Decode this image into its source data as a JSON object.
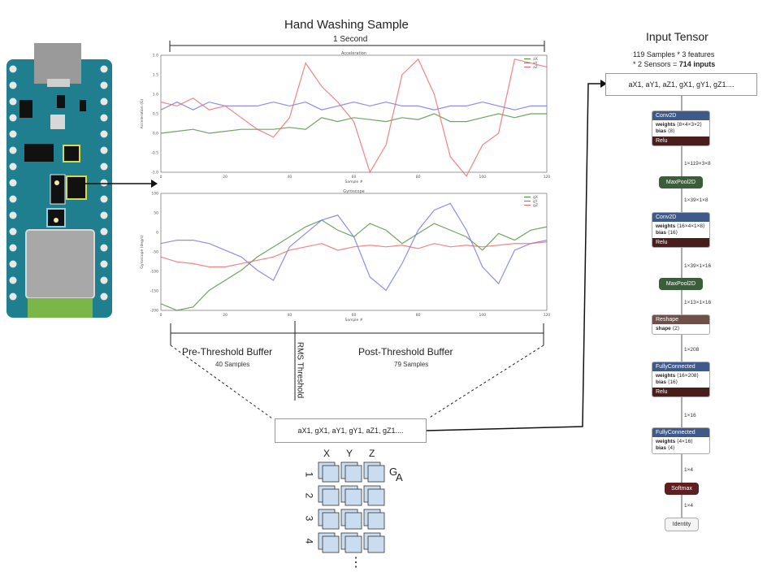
{
  "header": {
    "title": "Hand Washing Sample",
    "duration": "1 Second"
  },
  "buffers": {
    "pre_label": "Pre-Threshold Buffer",
    "pre_count": "40 Samples",
    "post_label": "Post-Threshold Buffer",
    "post_count": "79 Samples",
    "threshold_label": "RMS Threshold"
  },
  "sequence_box": "aX1, gX1, aY1, gY1, aZ1, gZ1....",
  "grid": {
    "headers": [
      "X",
      "Y",
      "Z"
    ],
    "rows": [
      "1",
      "2",
      "3",
      "4"
    ],
    "label_g": "G",
    "label_a": "A",
    "ellipsis": "⋮"
  },
  "input_tensor": {
    "title": "Input Tensor",
    "line1": "119 Samples * 3 features",
    "line2": "* 2 Sensors = ",
    "line2_bold": "714 inputs",
    "box": "aX1, aY1, aZ1, gX1, gY1, gZ1...."
  },
  "model": {
    "conv1": {
      "name": "Conv2D",
      "w_label": "weights",
      "w_value": "⟨8×4×3×2⟩",
      "b_label": "bias",
      "b_value": "⟨8⟩",
      "act": "Relu"
    },
    "d1": "1×119×3×8",
    "pool1": "MaxPool2D",
    "d2": "1×39×1×8",
    "conv2": {
      "name": "Conv2D",
      "w_label": "weights",
      "w_value": "⟨16×4×1×8⟩",
      "b_label": "bias",
      "b_value": "⟨16⟩",
      "act": "Relu"
    },
    "d3": "1×39×1×16",
    "pool2": "MaxPool2D",
    "d4": "1×13×1×16",
    "reshape": {
      "name": "Reshape",
      "s_label": "shape",
      "s_value": "⟨2⟩"
    },
    "d5": "1×208",
    "fc1": {
      "name": "FullyConnected",
      "w_label": "weights",
      "w_value": "⟨16×208⟩",
      "b_label": "bias",
      "b_value": "⟨16⟩",
      "act": "Relu"
    },
    "d6": "1×16",
    "fc2": {
      "name": "FullyConnected",
      "w_label": "weights",
      "w_value": "⟨4×16⟩",
      "b_label": "bias",
      "b_value": "⟨4⟩"
    },
    "d7": "1×4",
    "softmax": "Softmax",
    "d8": "1×4",
    "identity": "Identity"
  },
  "colors": {
    "conv_header": "#3d5a8a",
    "pool": "#3b5e3a",
    "reshape": "#6e5048",
    "relu": "#4a1d1d",
    "softmax": "#5c2020",
    "board": "#1f7f8f",
    "series_x": "#4b8f3a",
    "series_y": "#7070ee",
    "series_z": "#ee6666"
  },
  "chart_data": [
    {
      "type": "line",
      "title": "Acceleration",
      "xlabel": "Sample #",
      "ylabel": "Acceleration (G)",
      "xlim": [
        0,
        120
      ],
      "ylim": [
        -1.0,
        2.0
      ],
      "x_ticks": [
        "0",
        "20",
        "40",
        "60",
        "80",
        "100",
        "120"
      ],
      "y_ticks": [
        "-1.0",
        "-0.5",
        "0.0",
        "0.5",
        "1.0",
        "1.5",
        "2.0"
      ],
      "legend": [
        "aX",
        "aY",
        "aZ"
      ],
      "legend_position": "top-right",
      "x": [
        0,
        5,
        10,
        15,
        20,
        25,
        30,
        35,
        40,
        45,
        50,
        55,
        60,
        65,
        70,
        75,
        80,
        85,
        90,
        95,
        100,
        105,
        110,
        115,
        120
      ],
      "series": [
        {
          "name": "aX",
          "values": [
            0.0,
            0.05,
            0.1,
            0.0,
            0.05,
            0.1,
            0.1,
            0.1,
            0.15,
            0.1,
            0.4,
            0.3,
            0.4,
            0.35,
            0.3,
            0.4,
            0.35,
            0.5,
            0.3,
            0.3,
            0.4,
            0.5,
            0.4,
            0.5,
            0.5
          ]
        },
        {
          "name": "aY",
          "values": [
            0.6,
            0.8,
            0.6,
            0.8,
            0.7,
            0.7,
            0.7,
            0.8,
            0.7,
            0.8,
            0.6,
            0.7,
            0.8,
            0.7,
            0.8,
            0.7,
            0.7,
            0.6,
            0.7,
            0.7,
            0.8,
            0.7,
            0.6,
            0.7,
            0.7
          ]
        },
        {
          "name": "aZ",
          "values": [
            0.8,
            0.7,
            0.9,
            0.6,
            0.7,
            0.4,
            0.1,
            -0.1,
            0.4,
            1.8,
            1.2,
            0.8,
            0.3,
            -1.0,
            -0.3,
            1.5,
            1.9,
            1.0,
            -0.6,
            -1.1,
            -0.3,
            0.0,
            1.9,
            1.8,
            1.7
          ]
        }
      ]
    },
    {
      "type": "line",
      "title": "Gyroscope",
      "xlabel": "Sample #",
      "ylabel": "Gyroscope (deg/s)",
      "xlim": [
        0,
        120
      ],
      "ylim": [
        -200,
        150
      ],
      "x_ticks": [
        "0",
        "20",
        "40",
        "60",
        "80",
        "100",
        "120"
      ],
      "y_ticks": [
        "-200",
        "-150",
        "-100",
        "-50",
        "0",
        "50",
        "100"
      ],
      "legend": [
        "gX",
        "gY",
        "gZ"
      ],
      "legend_position": "top-right",
      "x": [
        0,
        5,
        10,
        15,
        20,
        25,
        30,
        35,
        40,
        45,
        50,
        55,
        60,
        65,
        70,
        75,
        80,
        85,
        90,
        95,
        100,
        105,
        110,
        115,
        120
      ],
      "series": [
        {
          "name": "gX",
          "values": [
            -180,
            -200,
            -190,
            -140,
            -110,
            -80,
            -40,
            -10,
            20,
            50,
            70,
            40,
            20,
            60,
            40,
            0,
            30,
            60,
            40,
            20,
            -20,
            30,
            10,
            40,
            50
          ]
        },
        {
          "name": "gY",
          "values": [
            0,
            10,
            10,
            0,
            -20,
            -40,
            -80,
            -110,
            -10,
            30,
            70,
            85,
            20,
            -100,
            -140,
            -60,
            40,
            100,
            120,
            40,
            -70,
            -120,
            -20,
            0,
            10
          ]
        },
        {
          "name": "gZ",
          "values": [
            -40,
            -55,
            -60,
            -70,
            -70,
            -60,
            -50,
            -40,
            -20,
            -10,
            0,
            -20,
            -10,
            -5,
            -10,
            -5,
            -15,
            0,
            -10,
            -5,
            -10,
            -5,
            0,
            0,
            5
          ]
        }
      ]
    }
  ]
}
